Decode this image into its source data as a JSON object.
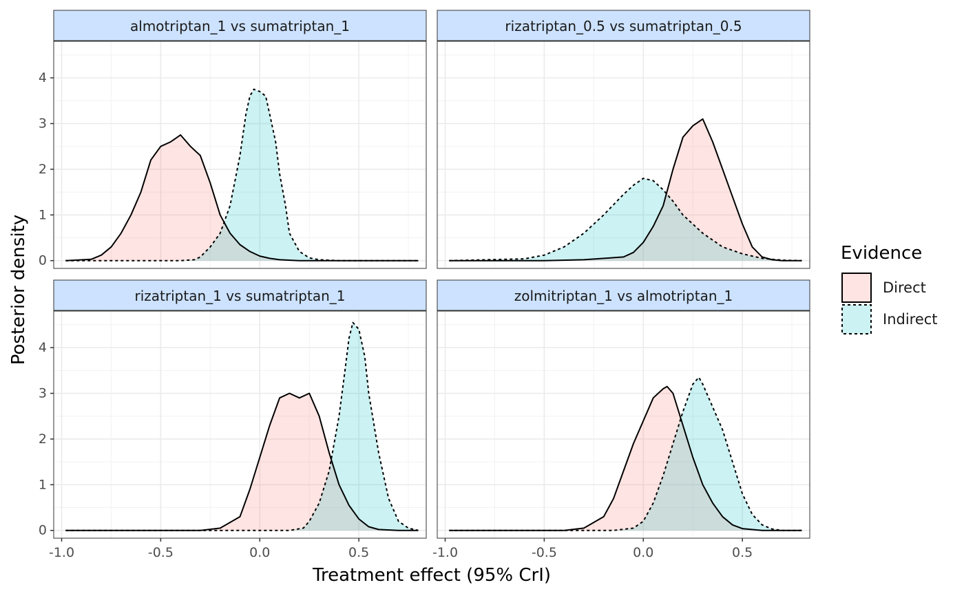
{
  "chart_data": {
    "type": "area",
    "xlabel": "Treatment effect (95% CrI)",
    "ylabel": "Posterior density",
    "xlim": [
      -1.04,
      0.84
    ],
    "x_ticks": [
      -1.0,
      -0.5,
      0.0,
      0.5
    ],
    "x_tick_labels": [
      "-1.0",
      "-0.5",
      "0.0",
      "0.5"
    ],
    "y_ticks": [
      0,
      1,
      2,
      3,
      4
    ],
    "y_tick_labels": [
      "0",
      "1",
      "2",
      "3",
      "4"
    ],
    "grid": true,
    "legend": {
      "title": "Evidence",
      "position": "right",
      "items": [
        {
          "label": "Direct",
          "color": "#F8766D",
          "line": "solid"
        },
        {
          "label": "Indirect",
          "color": "#00BFC4",
          "line": "dashed"
        }
      ]
    },
    "panels": [
      {
        "title": "almotriptan_1 vs sumatriptan_1",
        "ylim": [
          -0.17,
          4.8
        ],
        "series": [
          {
            "name": "Direct",
            "color": "#F8766D",
            "dash": false,
            "x": [
              -0.98,
              -0.85,
              -0.8,
              -0.75,
              -0.7,
              -0.65,
              -0.6,
              -0.55,
              -0.5,
              -0.45,
              -0.4,
              -0.35,
              -0.3,
              -0.25,
              -0.2,
              -0.15,
              -0.1,
              -0.05,
              0.0,
              0.05,
              0.1,
              0.2,
              0.3,
              0.8
            ],
            "y": [
              0,
              0.03,
              0.12,
              0.3,
              0.6,
              1.0,
              1.5,
              2.2,
              2.5,
              2.6,
              2.75,
              2.5,
              2.3,
              1.7,
              1.0,
              0.6,
              0.35,
              0.2,
              0.1,
              0.05,
              0.02,
              0,
              0,
              0
            ]
          },
          {
            "name": "Indirect",
            "color": "#00BFC4",
            "dash": true,
            "x": [
              -0.98,
              -0.4,
              -0.33,
              -0.3,
              -0.25,
              -0.2,
              -0.15,
              -0.1,
              -0.07,
              -0.05,
              -0.03,
              0.0,
              0.03,
              0.05,
              0.08,
              0.1,
              0.13,
              0.15,
              0.2,
              0.25,
              0.3,
              0.4,
              0.8
            ],
            "y": [
              0,
              0,
              0.02,
              0.08,
              0.3,
              0.6,
              1.2,
              2.3,
              3.2,
              3.6,
              3.75,
              3.7,
              3.6,
              3.2,
              2.6,
              1.9,
              1.2,
              0.6,
              0.2,
              0.06,
              0.02,
              0,
              0
            ]
          }
        ]
      },
      {
        "title": "rizatriptan_0.5 vs sumatriptan_0.5",
        "ylim": [
          -0.17,
          4.8
        ],
        "series": [
          {
            "name": "Direct",
            "color": "#F8766D",
            "dash": false,
            "x": [
              -0.98,
              -0.5,
              -0.3,
              -0.1,
              -0.05,
              0.0,
              0.05,
              0.1,
              0.15,
              0.2,
              0.25,
              0.3,
              0.35,
              0.4,
              0.45,
              0.5,
              0.55,
              0.6,
              0.65,
              0.7,
              0.8
            ],
            "y": [
              0,
              0,
              0.02,
              0.08,
              0.18,
              0.4,
              0.75,
              1.2,
              2.0,
              2.7,
              2.95,
              3.1,
              2.6,
              2.0,
              1.4,
              0.8,
              0.3,
              0.08,
              0.02,
              0,
              0
            ]
          },
          {
            "name": "Indirect",
            "color": "#00BFC4",
            "dash": true,
            "x": [
              -0.98,
              -0.6,
              -0.5,
              -0.4,
              -0.3,
              -0.2,
              -0.1,
              -0.05,
              0.0,
              0.05,
              0.1,
              0.15,
              0.2,
              0.3,
              0.4,
              0.5,
              0.6,
              0.7,
              0.8
            ],
            "y": [
              0,
              0.04,
              0.12,
              0.3,
              0.6,
              1.0,
              1.45,
              1.65,
              1.8,
              1.75,
              1.55,
              1.3,
              1.0,
              0.6,
              0.3,
              0.15,
              0.05,
              0.01,
              0
            ]
          }
        ]
      },
      {
        "title": "rizatriptan_1 vs sumatriptan_1",
        "ylim": [
          -0.17,
          4.8
        ],
        "series": [
          {
            "name": "Direct",
            "color": "#F8766D",
            "dash": false,
            "x": [
              -0.98,
              -0.3,
              -0.2,
              -0.1,
              -0.05,
              0.0,
              0.05,
              0.1,
              0.15,
              0.2,
              0.25,
              0.3,
              0.35,
              0.4,
              0.45,
              0.5,
              0.55,
              0.6,
              0.7,
              0.8
            ],
            "y": [
              0,
              0,
              0.05,
              0.3,
              0.9,
              1.6,
              2.3,
              2.9,
              3.0,
              2.9,
              3.0,
              2.5,
              1.7,
              1.0,
              0.55,
              0.25,
              0.08,
              0.02,
              0,
              0
            ]
          },
          {
            "name": "Indirect",
            "color": "#00BFC4",
            "dash": true,
            "x": [
              -0.98,
              0.15,
              0.22,
              0.25,
              0.3,
              0.35,
              0.4,
              0.43,
              0.45,
              0.47,
              0.5,
              0.53,
              0.55,
              0.6,
              0.65,
              0.7,
              0.75,
              0.8
            ],
            "y": [
              0,
              0,
              0.05,
              0.2,
              0.6,
              1.3,
              2.5,
              3.5,
              4.2,
              4.55,
              4.4,
              3.8,
              3.0,
              1.7,
              0.7,
              0.2,
              0.05,
              0
            ]
          }
        ]
      },
      {
        "title": "zolmitriptan_1 vs almotriptan_1",
        "ylim": [
          -0.17,
          4.8
        ],
        "series": [
          {
            "name": "Direct",
            "color": "#F8766D",
            "dash": false,
            "x": [
              -0.98,
              -0.4,
              -0.3,
              -0.2,
              -0.15,
              -0.1,
              -0.05,
              0.0,
              0.05,
              0.1,
              0.12,
              0.15,
              0.2,
              0.25,
              0.3,
              0.35,
              0.4,
              0.45,
              0.5,
              0.6,
              0.8
            ],
            "y": [
              0,
              0,
              0.05,
              0.3,
              0.7,
              1.3,
              1.9,
              2.4,
              2.9,
              3.1,
              3.15,
              3.0,
              2.3,
              1.6,
              1.0,
              0.6,
              0.3,
              0.12,
              0.04,
              0,
              0
            ]
          },
          {
            "name": "Indirect",
            "color": "#00BFC4",
            "dash": true,
            "x": [
              -0.98,
              -0.15,
              -0.05,
              0.0,
              0.05,
              0.1,
              0.15,
              0.2,
              0.25,
              0.28,
              0.3,
              0.35,
              0.4,
              0.45,
              0.5,
              0.55,
              0.6,
              0.65,
              0.7,
              0.8
            ],
            "y": [
              0,
              0,
              0.05,
              0.2,
              0.6,
              1.2,
              1.9,
              2.6,
              3.2,
              3.35,
              3.2,
              2.7,
              2.2,
              1.5,
              0.8,
              0.35,
              0.12,
              0.03,
              0,
              0
            ]
          }
        ]
      }
    ]
  }
}
